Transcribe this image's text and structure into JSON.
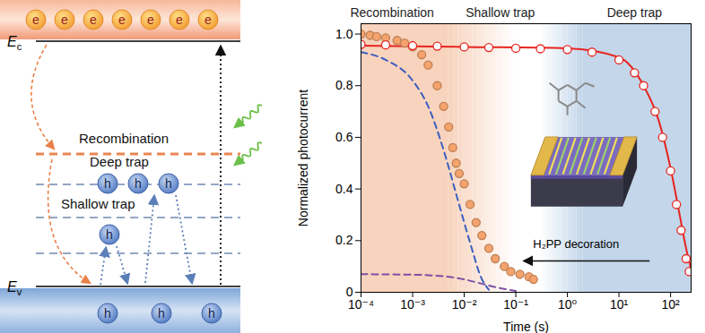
{
  "band_diagram": {
    "conduction_band": {
      "label": "E",
      "label_subscript": "c",
      "carriers": [
        "e",
        "e",
        "e",
        "e",
        "e",
        "e",
        "e"
      ]
    },
    "valence_band": {
      "label": "E",
      "label_subscript": "v",
      "carriers": [
        "h",
        "h",
        "h"
      ]
    },
    "levels": [
      {
        "label": "Recombination",
        "color": "#e8804a",
        "line_style": "dashed"
      },
      {
        "label": "Deep trap",
        "color": "#8fa3c0",
        "line_style": "dashed",
        "carriers": [
          "h",
          "h",
          "h"
        ]
      },
      {
        "label": "Shallow trap",
        "color": "#8fa3c0",
        "line_style": "dashed",
        "carriers": [
          "h"
        ]
      }
    ]
  },
  "chart_data": {
    "type": "line",
    "x_label": "Time (s)",
    "y_label": "Normalized photocurrent",
    "log": "x",
    "grid": false,
    "xlim": [
      0.0001,
      250
    ],
    "xticks": [
      {
        "value": 0.0001,
        "label": "10⁻⁴"
      },
      {
        "value": 0.001,
        "label": "10⁻³"
      },
      {
        "value": 0.01,
        "label": "10⁻²"
      },
      {
        "value": 0.1,
        "label": "10⁻¹"
      },
      {
        "value": 1,
        "label": "10⁰"
      },
      {
        "value": 10,
        "label": "10¹"
      },
      {
        "value": 100,
        "label": "10²"
      }
    ],
    "ylim": [
      0,
      1.04
    ],
    "yticks": [
      0,
      0.2,
      0.4,
      0.6,
      0.8,
      {
        "value": 1,
        "label": "1.0"
      }
    ],
    "annotations": [
      {
        "text": "Recombination",
        "x": 0.0004
      },
      {
        "text": "Shallow trap",
        "x": 0.05
      },
      {
        "text": "Deep trap",
        "x": 20
      }
    ],
    "shaded_regions": [
      {
        "from": 0.0001,
        "to": 0.005,
        "fade_to": 0.1,
        "color": "#f8d3bd"
      },
      {
        "fade_from": 0.3,
        "from": 2,
        "to": 250,
        "color": "#c3d6ea"
      }
    ],
    "inset": {
      "text": "H₂PP decoration"
    },
    "series": [
      {
        "type": "scatter",
        "marker": "circle",
        "color": "#f4a36c",
        "x": [
          0.0001,
          0.00015,
          0.0002,
          0.0003,
          0.0005,
          0.0007,
          0.001,
          0.0015,
          0.002,
          0.003,
          0.004,
          0.005,
          0.006,
          0.007,
          0.008,
          0.01,
          0.013,
          0.017,
          0.022,
          0.03,
          0.04,
          0.06,
          0.08,
          0.12,
          0.18,
          0.22
        ],
        "values": [
          1.0,
          0.995,
          0.99,
          0.985,
          0.975,
          0.965,
          0.95,
          0.92,
          0.88,
          0.8,
          0.72,
          0.64,
          0.56,
          0.5,
          0.46,
          0.42,
          0.34,
          0.27,
          0.22,
          0.17,
          0.13,
          0.1,
          0.08,
          0.07,
          0.06,
          0.05
        ]
      },
      {
        "type": "scatter",
        "marker": "open_circle",
        "color": "#e8251f",
        "x": [
          0.0001,
          0.0003,
          0.001,
          0.003,
          0.01,
          0.03,
          0.1,
          0.3,
          1,
          3,
          10,
          20,
          30,
          50,
          70,
          100,
          130,
          160,
          200,
          230
        ],
        "values": [
          0.96,
          0.958,
          0.955,
          0.953,
          0.95,
          0.948,
          0.945,
          0.943,
          0.94,
          0.93,
          0.9,
          0.85,
          0.8,
          0.7,
          0.6,
          0.47,
          0.34,
          0.24,
          0.13,
          0.08
        ]
      },
      {
        "type": "line",
        "line_style": "solid",
        "color": "#e8251f",
        "x": [
          0.0001,
          0.01,
          1,
          10,
          30,
          60,
          100,
          150,
          200,
          250
        ],
        "values": [
          0.955,
          0.95,
          0.945,
          0.91,
          0.8,
          0.66,
          0.48,
          0.3,
          0.17,
          0.09
        ]
      },
      {
        "type": "line",
        "line_style": "dashed",
        "color": "#3b5fc0",
        "x": [
          0.0001,
          0.0003,
          0.001,
          0.002,
          0.004,
          0.007,
          0.01,
          0.015,
          0.02,
          0.03
        ],
        "values": [
          0.93,
          0.9,
          0.82,
          0.72,
          0.55,
          0.38,
          0.27,
          0.15,
          0.07,
          0.01
        ]
      },
      {
        "type": "line",
        "line_style": "dashed",
        "color": "#7d4fa6",
        "x": [
          0.0001,
          0.001,
          0.005,
          0.01,
          0.02,
          0.04,
          0.1
        ],
        "values": [
          0.07,
          0.068,
          0.06,
          0.05,
          0.035,
          0.02,
          0.005
        ]
      }
    ]
  }
}
